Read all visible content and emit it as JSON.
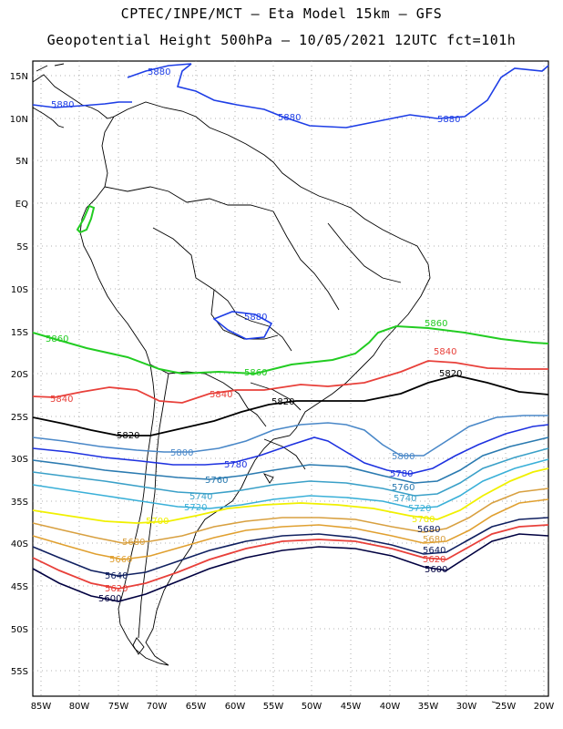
{
  "header": {
    "line1": "CPTEC/INPE/MCT —  Eta Model 15km — GFS",
    "line2": "Geopotential Height 500hPa — 10/05/2021 12UTC fct=101h"
  },
  "axes": {
    "lat_labels": [
      "15N",
      "10N",
      "5N",
      "EQ",
      "5S",
      "10S",
      "15S",
      "20S",
      "25S",
      "30S",
      "35S",
      "40S",
      "45S",
      "50S",
      "55S"
    ],
    "lon_labels": [
      "85W",
      "80W",
      "75W",
      "70W",
      "65W",
      "60W",
      "55W",
      "50W",
      "45W",
      "40W",
      "35W",
      "30W",
      "25W",
      "20W"
    ]
  },
  "map": {
    "lat_range": [
      15,
      -58
    ],
    "lon_range": [
      -86,
      -20
    ]
  },
  "contours": {
    "c5880_a": "5880",
    "c5880_b": "5880",
    "c5880_c": "5880",
    "c5880_d": "5880",
    "c5860_w": "5860",
    "c5860_c": "5860",
    "c5860_e": "5860",
    "c5840_w": "5840",
    "c5840_c": "5840",
    "c5840_e": "5840",
    "c5820_w": "5820",
    "c5820_c": "5820",
    "c5820_e": "5820",
    "s5800_n": "5800",
    "s5800_e": "5800",
    "s5780_w": "5780",
    "s5780_e": "5780",
    "s5760_w": "5760",
    "s5760_e": "5760",
    "s5740_w": "5740",
    "s5740_e": "5740",
    "s5720_w": "5720",
    "s5720_e": "5720",
    "s5700_w": "5700",
    "s5700_e": "5700",
    "s5680_w": "5680",
    "s5680_e1": "5680",
    "s5680_e2": "5680",
    "s5660_w": "5660",
    "s5640_w": "5640",
    "s5640_e": "5640",
    "s5620_w": "5620",
    "s5620_e": "5620",
    "s5600_w": "5600",
    "s5600_e": "5600"
  },
  "colors": {
    "c5880": "#1e3ee6",
    "c5860": "#22cc22",
    "c5840": "#e8403a",
    "c5820": "#000000",
    "c5800": "#4a88c8",
    "c5780": "#1e32e0",
    "c5760": "#2a7ab0",
    "c5740": "#3aa0c8",
    "c5720": "#3ab0d8",
    "c5700": "#f0f000",
    "c5680": "#d8a040",
    "c5660": "#e0a030",
    "c5640": "#102060",
    "c5620": "#e8403a",
    "c5600": "#000040"
  }
}
